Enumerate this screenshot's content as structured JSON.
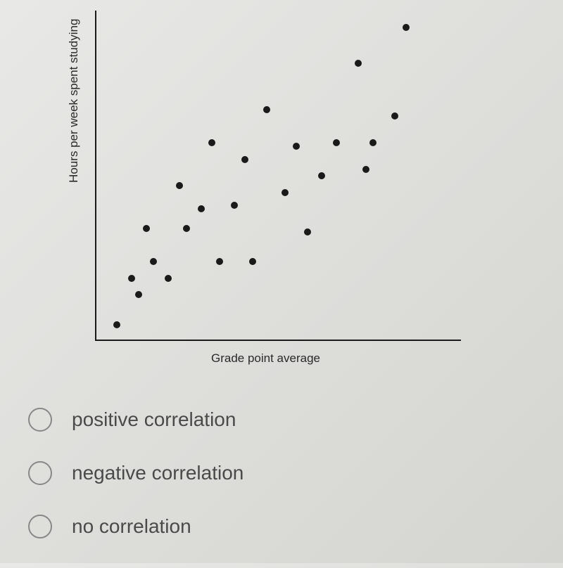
{
  "chart": {
    "type": "scatter",
    "ylabel": "Hours per week spent studying",
    "xlabel": "Grade point average",
    "label_fontsize": 17,
    "axis_color": "#1a1a1a",
    "point_color": "#1a1a1a",
    "point_radius": 5,
    "background_color": "transparent",
    "xlim": [
      0,
      100
    ],
    "ylim": [
      0,
      100
    ],
    "points": [
      {
        "x": 6,
        "y": 5
      },
      {
        "x": 10,
        "y": 19
      },
      {
        "x": 12,
        "y": 14
      },
      {
        "x": 14,
        "y": 34
      },
      {
        "x": 16,
        "y": 24
      },
      {
        "x": 20,
        "y": 19
      },
      {
        "x": 23,
        "y": 47
      },
      {
        "x": 25,
        "y": 34
      },
      {
        "x": 29,
        "y": 40
      },
      {
        "x": 32,
        "y": 60
      },
      {
        "x": 34,
        "y": 24
      },
      {
        "x": 38,
        "y": 41
      },
      {
        "x": 41,
        "y": 55
      },
      {
        "x": 43,
        "y": 24
      },
      {
        "x": 47,
        "y": 70
      },
      {
        "x": 52,
        "y": 45
      },
      {
        "x": 55,
        "y": 59
      },
      {
        "x": 58,
        "y": 33
      },
      {
        "x": 62,
        "y": 50
      },
      {
        "x": 66,
        "y": 60
      },
      {
        "x": 72,
        "y": 84
      },
      {
        "x": 74,
        "y": 52
      },
      {
        "x": 76,
        "y": 60
      },
      {
        "x": 82,
        "y": 68
      },
      {
        "x": 85,
        "y": 95
      }
    ]
  },
  "question": {
    "options": [
      {
        "label": "positive correlation",
        "selected": false
      },
      {
        "label": "negative correlation",
        "selected": false
      },
      {
        "label": "no correlation",
        "selected": false
      }
    ],
    "option_fontsize": 28,
    "option_color": "#4a4a4a",
    "radio_border_color": "#888"
  }
}
